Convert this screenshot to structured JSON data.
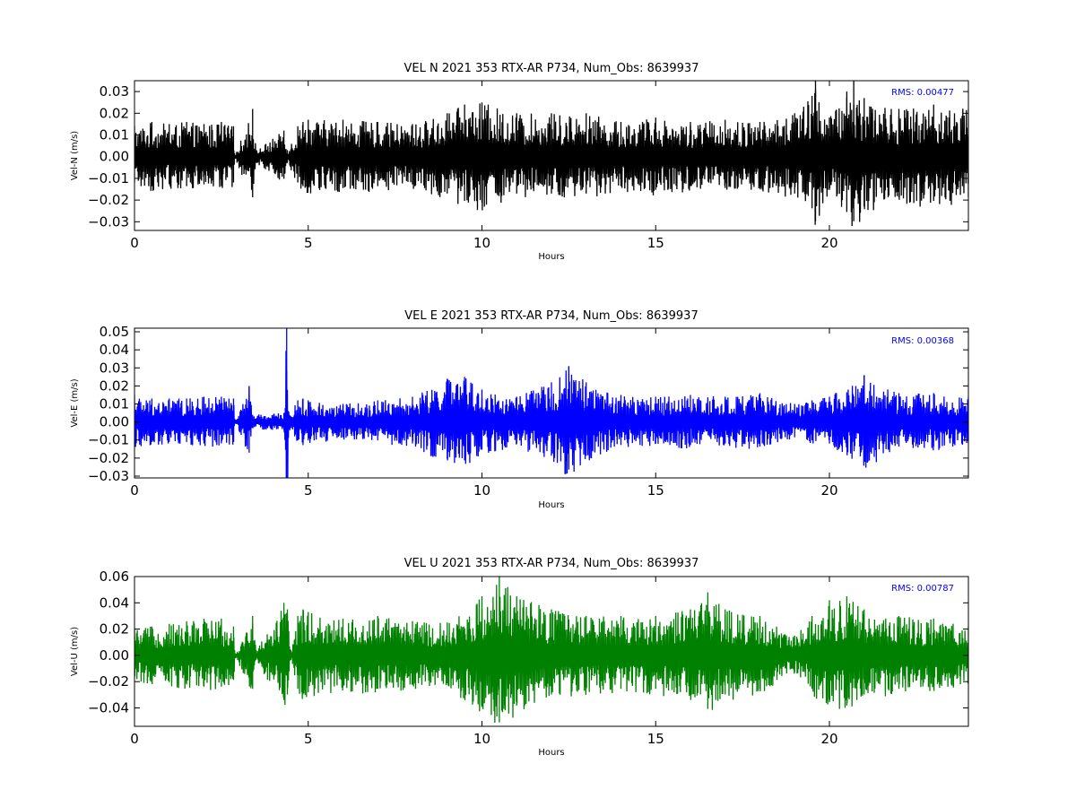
{
  "chart_data": [
    {
      "type": "line",
      "title": "VEL N 2021 353 RTX-AR  P734, Num_Obs: 8639937",
      "xlabel": "Hours",
      "ylabel": "Vel-N (m/s)",
      "xlim": [
        0,
        24
      ],
      "ylim": [
        -0.034,
        0.035
      ],
      "xticks": [
        0,
        5,
        10,
        15,
        20
      ],
      "yticks": [
        -0.03,
        -0.02,
        -0.01,
        0.0,
        0.01,
        0.02,
        0.03
      ],
      "ytick_labels": [
        "−0.03",
        "−0.02",
        "−0.01",
        "0.00",
        "0.01",
        "0.02",
        "0.03"
      ],
      "color": "#000000",
      "annotation": "RMS:  0.00477",
      "annotation_color": "#0000ff",
      "series": [
        {
          "x": [
            0,
            0.5,
            1,
            1.5,
            2,
            2.5,
            2.85,
            2.9,
            3.4,
            3.5,
            4.3,
            4.4,
            4.7,
            4.85,
            5,
            6,
            7,
            8,
            9,
            9.5,
            10,
            11,
            12,
            13,
            14,
            15,
            16,
            17,
            18,
            19,
            19.5,
            19.6,
            20,
            20.5,
            20.7,
            21,
            22,
            23,
            24
          ],
          "envelope": [
            0.014,
            0.016,
            0.015,
            0.016,
            0.015,
            0.016,
            0.014,
            0.0007,
            0.022,
            0.003,
            0.012,
            0.003,
            0.014,
            0.016,
            0.017,
            0.017,
            0.016,
            0.015,
            0.02,
            0.024,
            0.025,
            0.02,
            0.02,
            0.02,
            0.016,
            0.018,
            0.016,
            0.017,
            0.016,
            0.02,
            0.028,
            0.035,
            0.018,
            0.03,
            0.035,
            0.027,
            0.022,
            0.024,
            0.022
          ]
        }
      ]
    },
    {
      "type": "line",
      "title": "VEL E 2021 353 RTX-AR  P734, Num_Obs: 8639937",
      "xlabel": "Hours",
      "ylabel": "Vel-E (m/s)",
      "xlim": [
        0,
        24
      ],
      "ylim": [
        -0.031,
        0.052
      ],
      "xticks": [
        0,
        5,
        10,
        15,
        20
      ],
      "yticks": [
        -0.03,
        -0.02,
        -0.01,
        0.0,
        0.01,
        0.02,
        0.03,
        0.04,
        0.05
      ],
      "ytick_labels": [
        "−0.03",
        "−0.02",
        "−0.01",
        "0.00",
        "0.01",
        "0.02",
        "0.03",
        "0.04",
        "0.05"
      ],
      "color": "#0000ff",
      "annotation": "RMS:  0.00368",
      "annotation_color": "#0000ff",
      "series": [
        {
          "x": [
            0,
            0.5,
            1,
            1.5,
            2,
            2.5,
            2.85,
            2.9,
            3.3,
            3.4,
            4.3,
            4.38,
            4.45,
            4.7,
            4.85,
            5,
            6,
            7,
            8,
            9,
            9.5,
            10,
            11,
            12,
            12.5,
            13,
            14,
            15,
            16,
            17,
            18,
            19,
            19.5,
            20,
            21,
            22,
            23,
            24
          ],
          "envelope": [
            0.015,
            0.013,
            0.013,
            0.013,
            0.014,
            0.014,
            0.013,
            0.0008,
            0.02,
            0.004,
            0.005,
            0.052,
            0.004,
            0.012,
            0.013,
            0.012,
            0.01,
            0.012,
            0.014,
            0.024,
            0.025,
            0.018,
            0.014,
            0.022,
            0.031,
            0.022,
            0.015,
            0.014,
            0.015,
            0.014,
            0.016,
            0.01,
            0.012,
            0.014,
            0.026,
            0.016,
            0.016,
            0.014
          ]
        }
      ]
    },
    {
      "type": "line",
      "title": "VEL U 2021 353 RTX-AR  P734, Num_Obs: 8639937",
      "xlabel": "Hours",
      "ylabel": "Vel-U (m/s)",
      "xlim": [
        0,
        24
      ],
      "ylim": [
        -0.054,
        0.06
      ],
      "xticks": [
        0,
        5,
        10,
        15,
        20
      ],
      "yticks": [
        -0.04,
        -0.02,
        0.0,
        0.02,
        0.04,
        0.06
      ],
      "ytick_labels": [
        "−0.04",
        "−0.02",
        "0.00",
        "0.02",
        "0.04",
        "0.06"
      ],
      "color": "#008000",
      "annotation": "RMS:  0.00787",
      "annotation_color": "#0000ff",
      "series": [
        {
          "x": [
            0,
            0.5,
            1,
            1.5,
            2,
            2.5,
            2.85,
            2.9,
            3.4,
            3.5,
            4.3,
            4.4,
            4.5,
            4.7,
            4.85,
            5,
            6,
            7,
            8,
            9,
            10,
            10.5,
            11,
            12,
            13,
            14,
            15,
            16,
            16.5,
            17,
            18,
            19,
            19.5,
            20,
            20.5,
            21,
            22,
            23,
            24
          ],
          "envelope": [
            0.02,
            0.022,
            0.024,
            0.026,
            0.028,
            0.028,
            0.022,
            0.0015,
            0.03,
            0.004,
            0.04,
            0.035,
            0.004,
            0.03,
            0.035,
            0.033,
            0.028,
            0.03,
            0.026,
            0.025,
            0.045,
            0.06,
            0.045,
            0.035,
            0.03,
            0.03,
            0.03,
            0.035,
            0.048,
            0.035,
            0.03,
            0.015,
            0.03,
            0.042,
            0.045,
            0.035,
            0.03,
            0.028,
            0.022
          ]
        }
      ]
    }
  ]
}
